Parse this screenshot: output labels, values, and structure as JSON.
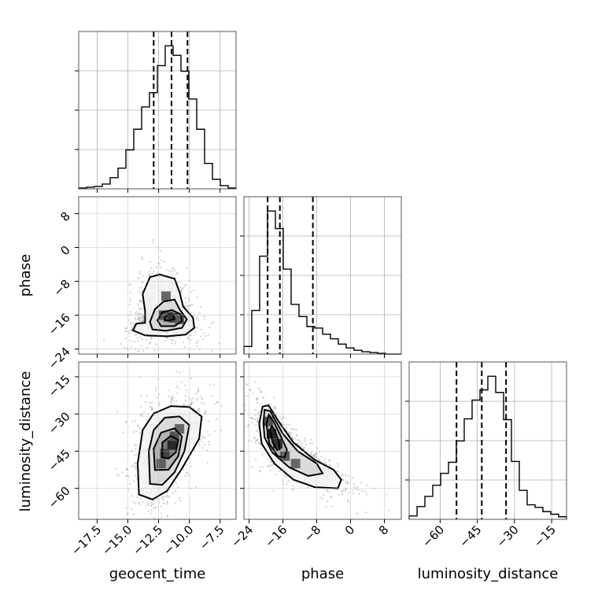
{
  "chart_data": {
    "type": "corner",
    "parameters": [
      "geocent_time",
      "phase",
      "luminosity_distance"
    ],
    "axes": {
      "geocent_time": {
        "label": "geocent_time",
        "range": [
          -19.0,
          -6.2
        ],
        "ticks": [
          -17.5,
          -15.0,
          -12.5,
          -10.0,
          -7.5
        ],
        "tick_labels": [
          "−17.5",
          "−15.0",
          "−12.5",
          "−10.0",
          "−7.5"
        ]
      },
      "phase": {
        "label": "phase",
        "range": [
          -25.2,
          12.0
        ],
        "ticks": [
          -24,
          -16,
          -8,
          0,
          8
        ],
        "tick_labels": [
          "−24",
          "−16",
          "−8",
          "0",
          "8"
        ]
      },
      "luminosity_distance": {
        "label": "luminosity_distance",
        "range": [
          -72.5,
          -9.0
        ],
        "ticks": [
          -60,
          -45,
          -30,
          -15
        ],
        "tick_labels": [
          "−60",
          "−45",
          "−30",
          "−15"
        ]
      }
    },
    "histograms": [
      {
        "parameter": "geocent_time",
        "bin_edges": [
          -19.0,
          -18.36,
          -17.72,
          -17.08,
          -16.44,
          -15.8,
          -15.16,
          -14.52,
          -13.88,
          -13.24,
          -12.6,
          -11.96,
          -11.32,
          -10.68,
          -10.04,
          -9.4,
          -8.76,
          -8.12,
          -7.48,
          -6.84,
          -6.2
        ],
        "counts": [
          1,
          2,
          3,
          6,
          14,
          26,
          49,
          75,
          103,
          121,
          155,
          180,
          168,
          148,
          113,
          75,
          32,
          12,
          4,
          1
        ],
        "quantiles": [
          -12.9,
          -11.45,
          -10.15
        ]
      },
      {
        "parameter": "phase",
        "bin_edges": [
          -25.2,
          -23.34,
          -21.48,
          -19.62,
          -17.76,
          -15.9,
          -14.04,
          -12.18,
          -10.32,
          -8.46,
          -6.6,
          -4.74,
          -2.88,
          -1.02,
          0.84,
          2.7,
          4.56,
          6.42,
          8.28,
          10.14,
          12.0
        ],
        "counts": [
          10,
          57,
          128,
          187,
          164,
          111,
          65,
          49,
          36,
          34,
          26,
          20,
          13,
          8,
          5,
          3,
          2,
          1,
          0,
          0
        ],
        "quantiles": [
          -19.6,
          -16.7,
          -8.9
        ]
      },
      {
        "parameter": "luminosity_distance",
        "bin_edges": [
          -72.5,
          -69.32,
          -66.15,
          -62.98,
          -59.8,
          -56.62,
          -53.45,
          -50.28,
          -47.1,
          -43.92,
          -40.75,
          -37.58,
          -34.4,
          -31.23,
          -28.05,
          -24.88,
          -21.7,
          -18.53,
          -15.35,
          -12.18,
          -9.0
        ],
        "counts": [
          4,
          15,
          27,
          40,
          54,
          67,
          92,
          118,
          140,
          152,
          168,
          149,
          117,
          68,
          34,
          17,
          14,
          9,
          6,
          3
        ],
        "quantiles": [
          -53.4,
          -43.2,
          -33.4
        ]
      }
    ],
    "pairs": [
      {
        "x": "geocent_time",
        "y": "phase",
        "mode": [
          -11.7,
          -16.3
        ],
        "density_peaks": [
          [
            -11.7,
            -16.4,
            1.0
          ],
          [
            -11.3,
            -16.6,
            0.8
          ],
          [
            -12.1,
            -16.0,
            0.55
          ],
          [
            -11.9,
            -11.5,
            0.3
          ],
          [
            -10.8,
            -17.0,
            0.45
          ]
        ],
        "contours": [
          [
            [
              -13.6,
              -17.8
            ],
            [
              -13.6,
              -15.0
            ],
            [
              -13.8,
              -11.0
            ],
            [
              -13.2,
              -7.0
            ],
            [
              -12.4,
              -6.4
            ],
            [
              -11.2,
              -7.4
            ],
            [
              -10.8,
              -10.5
            ],
            [
              -10.5,
              -14.0
            ],
            [
              -9.7,
              -16.6
            ],
            [
              -9.6,
              -19.0
            ],
            [
              -10.3,
              -20.6
            ],
            [
              -11.8,
              -21.0
            ],
            [
              -13.6,
              -20.8
            ],
            [
              -14.6,
              -19.6
            ],
            [
              -14.3,
              -18.0
            ]
          ],
          [
            [
              -13.2,
              -17.6
            ],
            [
              -12.8,
              -14.6
            ],
            [
              -12.1,
              -12.8
            ],
            [
              -11.2,
              -12.3
            ],
            [
              -10.8,
              -14.6
            ],
            [
              -10.2,
              -17.0
            ],
            [
              -10.6,
              -19.0
            ],
            [
              -11.9,
              -19.7
            ],
            [
              -13.0,
              -19.4
            ]
          ],
          [
            [
              -12.6,
              -17.2
            ],
            [
              -12.2,
              -15.3
            ],
            [
              -11.4,
              -14.8
            ],
            [
              -10.7,
              -15.8
            ],
            [
              -10.6,
              -17.4
            ],
            [
              -11.2,
              -18.6
            ],
            [
              -12.3,
              -18.6
            ]
          ],
          [
            [
              -12.0,
              -16.5
            ],
            [
              -11.7,
              -15.9
            ],
            [
              -11.3,
              -16.1
            ],
            [
              -11.2,
              -16.9
            ],
            [
              -11.7,
              -17.3
            ],
            [
              -12.0,
              -17.1
            ]
          ]
        ]
      },
      {
        "x": "geocent_time",
        "y": "luminosity_distance",
        "mode": [
          -11.4,
          -42.5
        ],
        "density_peaks": [
          [
            -11.4,
            -42.5,
            1.0
          ],
          [
            -12.0,
            -46.0,
            0.7
          ],
          [
            -11.2,
            -39.0,
            0.55
          ],
          [
            -12.3,
            -50.0,
            0.4
          ],
          [
            -10.8,
            -36.0,
            0.3
          ]
        ],
        "contours": [
          [
            [
              -14.1,
              -62.5
            ],
            [
              -14.2,
              -50.0
            ],
            [
              -13.8,
              -36.5
            ],
            [
              -12.9,
              -29.8
            ],
            [
              -11.5,
              -26.8
            ],
            [
              -10.0,
              -27.2
            ],
            [
              -9.0,
              -31.0
            ],
            [
              -9.2,
              -40.0
            ],
            [
              -10.6,
              -52.0
            ],
            [
              -11.8,
              -61.0
            ],
            [
              -13.0,
              -64.5
            ]
          ],
          [
            [
              -13.2,
              -58.2
            ],
            [
              -13.3,
              -45.0
            ],
            [
              -12.9,
              -36.5
            ],
            [
              -12.0,
              -31.5
            ],
            [
              -10.8,
              -31.0
            ],
            [
              -10.0,
              -34.5
            ],
            [
              -10.4,
              -45.0
            ],
            [
              -11.2,
              -53.5
            ],
            [
              -12.2,
              -58.6
            ]
          ],
          [
            [
              -12.8,
              -52.6
            ],
            [
              -12.9,
              -44.0
            ],
            [
              -12.3,
              -37.5
            ],
            [
              -11.2,
              -35.8
            ],
            [
              -10.6,
              -39.0
            ],
            [
              -10.9,
              -47.0
            ],
            [
              -11.7,
              -52.5
            ]
          ],
          [
            [
              -12.2,
              -47.5
            ],
            [
              -12.2,
              -41.5
            ],
            [
              -11.5,
              -38.8
            ],
            [
              -10.9,
              -40.5
            ],
            [
              -11.1,
              -45.5
            ],
            [
              -11.7,
              -48.0
            ]
          ]
        ]
      },
      {
        "x": "phase",
        "y": "luminosity_distance",
        "mode": [
          -17.5,
          -41.0
        ],
        "density_peaks": [
          [
            -18.7,
            -38.0,
            1.0
          ],
          [
            -17.2,
            -42.0,
            0.9
          ],
          [
            -19.5,
            -33.0,
            0.5
          ],
          [
            -15.5,
            -47.0,
            0.45
          ],
          [
            -13.0,
            -50.0,
            0.3
          ]
        ],
        "contours": [
          [
            [
              -21.6,
              -34.0
            ],
            [
              -20.8,
              -27.0
            ],
            [
              -19.4,
              -26.5
            ],
            [
              -17.0,
              -33.0
            ],
            [
              -13.5,
              -41.5
            ],
            [
              -8.5,
              -48.5
            ],
            [
              -4.0,
              -52.5
            ],
            [
              -2.2,
              -56.5
            ],
            [
              -3.0,
              -60.0
            ],
            [
              -8.5,
              -59.5
            ],
            [
              -13.5,
              -56.5
            ],
            [
              -18.0,
              -50.0
            ],
            [
              -21.0,
              -42.0
            ]
          ],
          [
            [
              -20.6,
              -33.5
            ],
            [
              -20.3,
              -28.3
            ],
            [
              -19.0,
              -28.8
            ],
            [
              -16.0,
              -38.0
            ],
            [
              -12.5,
              -45.0
            ],
            [
              -8.0,
              -50.0
            ],
            [
              -6.6,
              -54.0
            ],
            [
              -10.0,
              -55.0
            ],
            [
              -14.5,
              -51.5
            ],
            [
              -18.5,
              -45.5
            ],
            [
              -20.3,
              -39.5
            ]
          ],
          [
            [
              -19.9,
              -34.0
            ],
            [
              -19.3,
              -30.3
            ],
            [
              -18.2,
              -33.0
            ],
            [
              -16.6,
              -38.5
            ],
            [
              -15.0,
              -44.5
            ],
            [
              -15.6,
              -47.5
            ],
            [
              -17.2,
              -47.0
            ],
            [
              -19.2,
              -42.0
            ]
          ],
          [
            [
              -19.0,
              -36.5
            ],
            [
              -18.6,
              -34.8
            ],
            [
              -17.8,
              -37.0
            ],
            [
              -16.9,
              -41.5
            ],
            [
              -16.7,
              -44.2
            ],
            [
              -17.4,
              -44.5
            ],
            [
              -18.4,
              -41.5
            ]
          ]
        ]
      }
    ],
    "grid": true
  }
}
